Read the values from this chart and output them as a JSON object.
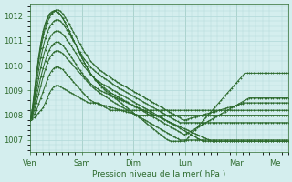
{
  "bg_color": "#d4eeee",
  "grid_color": "#b0d8d8",
  "line_color": "#2d6a2d",
  "marker_color": "#2d6a2d",
  "xlabel": "Pression niveau de la mer( hPa )",
  "xlabel_color": "#2d6a2d",
  "tick_color": "#2d6a2d",
  "ylim": [
    1006.5,
    1012.5
  ],
  "yticks": [
    1007,
    1008,
    1009,
    1010,
    1011,
    1012
  ],
  "days": [
    "Ven",
    "Sam",
    "Dim",
    "Lun",
    "Mar",
    "Me"
  ],
  "day_positions_hours": [
    0,
    24,
    48,
    72,
    96,
    114
  ],
  "total_hours": 120,
  "series": [
    [
      1007.8,
      1007.85,
      1007.9,
      1008.0,
      1008.1,
      1008.2,
      1008.3,
      1008.5,
      1008.7,
      1008.9,
      1009.05,
      1009.15,
      1009.2,
      1009.2,
      1009.15,
      1009.1,
      1009.05,
      1009.0,
      1008.95,
      1008.9,
      1008.85,
      1008.8,
      1008.75,
      1008.7,
      1008.65,
      1008.6,
      1008.55,
      1008.5,
      1008.5,
      1008.5,
      1008.5,
      1008.5,
      1008.45,
      1008.4,
      1008.35,
      1008.3,
      1008.25,
      1008.2,
      1008.2,
      1008.2,
      1008.2,
      1008.2,
      1008.2,
      1008.2,
      1008.2,
      1008.2,
      1008.2,
      1008.2,
      1008.2,
      1008.2,
      1008.2,
      1008.2,
      1008.2,
      1008.2,
      1008.2,
      1008.2,
      1008.2,
      1008.2,
      1008.2,
      1008.2,
      1008.2,
      1008.2,
      1008.2,
      1008.2,
      1008.2,
      1008.2,
      1008.2,
      1008.2,
      1008.2,
      1008.2,
      1008.2,
      1008.2,
      1008.2,
      1008.2,
      1008.2,
      1008.2,
      1008.2,
      1008.2,
      1008.2,
      1008.2,
      1008.2,
      1008.2,
      1008.2,
      1008.2,
      1008.2,
      1008.2,
      1008.2,
      1008.2,
      1008.2,
      1008.2,
      1008.2,
      1008.2,
      1008.2,
      1008.2,
      1008.2,
      1008.2,
      1008.2,
      1008.2,
      1008.2,
      1008.2,
      1008.2,
      1008.2,
      1008.2,
      1008.2,
      1008.2,
      1008.2,
      1008.2,
      1008.2,
      1008.2,
      1008.2,
      1008.2,
      1008.2,
      1008.2,
      1008.2,
      1008.2,
      1008.2,
      1008.2,
      1008.2,
      1008.2,
      1008.2
    ],
    [
      1007.8,
      1007.9,
      1008.05,
      1008.2,
      1008.45,
      1008.7,
      1008.95,
      1009.2,
      1009.45,
      1009.65,
      1009.8,
      1009.9,
      1009.95,
      1009.95,
      1009.9,
      1009.85,
      1009.75,
      1009.65,
      1009.55,
      1009.45,
      1009.35,
      1009.25,
      1009.15,
      1009.05,
      1008.95,
      1008.85,
      1008.75,
      1008.65,
      1008.6,
      1008.55,
      1008.5,
      1008.48,
      1008.45,
      1008.42,
      1008.4,
      1008.38,
      1008.35,
      1008.33,
      1008.3,
      1008.28,
      1008.25,
      1008.23,
      1008.2,
      1008.18,
      1008.15,
      1008.13,
      1008.1,
      1008.08,
      1008.05,
      1008.03,
      1008.0,
      1008.0,
      1008.0,
      1008.0,
      1008.0,
      1008.0,
      1008.0,
      1008.0,
      1008.0,
      1008.0,
      1008.0,
      1008.0,
      1008.0,
      1008.0,
      1008.0,
      1008.0,
      1008.0,
      1008.0,
      1008.0,
      1008.0,
      1008.0,
      1008.0,
      1008.0,
      1008.0,
      1008.0,
      1008.0,
      1008.0,
      1008.0,
      1008.0,
      1008.0,
      1008.0,
      1008.0,
      1008.0,
      1008.0,
      1008.0,
      1008.0,
      1008.0,
      1008.0,
      1008.0,
      1008.0,
      1008.0,
      1008.0,
      1008.0,
      1008.0,
      1008.0,
      1008.0,
      1008.0,
      1008.0,
      1008.0,
      1008.0,
      1008.0,
      1008.0,
      1008.0,
      1008.0,
      1008.0,
      1008.0,
      1008.0,
      1008.0,
      1008.0,
      1008.0,
      1008.0,
      1008.0,
      1008.0,
      1008.0,
      1008.0,
      1008.0,
      1008.0,
      1008.0,
      1008.0,
      1008.0
    ],
    [
      1007.8,
      1007.95,
      1008.2,
      1008.5,
      1008.85,
      1009.2,
      1009.55,
      1009.85,
      1010.1,
      1010.3,
      1010.45,
      1010.55,
      1010.6,
      1010.6,
      1010.55,
      1010.5,
      1010.4,
      1010.3,
      1010.2,
      1010.1,
      1010.0,
      1009.9,
      1009.8,
      1009.7,
      1009.6,
      1009.5,
      1009.4,
      1009.3,
      1009.2,
      1009.12,
      1009.05,
      1008.98,
      1008.92,
      1008.86,
      1008.8,
      1008.74,
      1008.68,
      1008.62,
      1008.56,
      1008.5,
      1008.45,
      1008.4,
      1008.35,
      1008.3,
      1008.25,
      1008.2,
      1008.15,
      1008.1,
      1008.05,
      1008.0,
      1007.95,
      1007.9,
      1007.85,
      1007.8,
      1007.75,
      1007.7,
      1007.65,
      1007.6,
      1007.55,
      1007.5,
      1007.45,
      1007.4,
      1007.35,
      1007.3,
      1007.25,
      1007.2,
      1007.15,
      1007.1,
      1007.05,
      1007.0,
      1007.0,
      1007.0,
      1007.0,
      1007.0,
      1007.0,
      1007.0,
      1007.0,
      1007.0,
      1007.0,
      1007.0,
      1007.0,
      1007.0,
      1007.0,
      1007.0,
      1007.0,
      1007.0,
      1007.0,
      1007.0,
      1007.0,
      1007.0,
      1007.0,
      1007.0,
      1007.0,
      1007.0,
      1007.0,
      1007.0,
      1007.0,
      1007.0,
      1007.0,
      1007.0,
      1007.0,
      1007.0,
      1007.0,
      1007.0,
      1007.0,
      1007.0,
      1007.0,
      1007.0,
      1007.0,
      1007.0,
      1007.0,
      1007.0,
      1007.0,
      1007.0,
      1007.0,
      1007.0,
      1007.0,
      1007.0,
      1007.0,
      1007.0
    ],
    [
      1007.8,
      1008.0,
      1008.35,
      1008.75,
      1009.15,
      1009.55,
      1009.9,
      1010.2,
      1010.45,
      1010.65,
      1010.8,
      1010.9,
      1010.95,
      1010.95,
      1010.9,
      1010.82,
      1010.72,
      1010.6,
      1010.48,
      1010.35,
      1010.22,
      1010.08,
      1009.95,
      1009.82,
      1009.7,
      1009.58,
      1009.47,
      1009.37,
      1009.28,
      1009.2,
      1009.13,
      1009.07,
      1009.02,
      1008.97,
      1008.93,
      1008.89,
      1008.85,
      1008.81,
      1008.77,
      1008.73,
      1008.7,
      1008.66,
      1008.62,
      1008.58,
      1008.54,
      1008.5,
      1008.46,
      1008.42,
      1008.38,
      1008.34,
      1008.3,
      1008.26,
      1008.22,
      1008.18,
      1008.14,
      1008.1,
      1008.06,
      1008.02,
      1007.98,
      1007.94,
      1007.9,
      1007.86,
      1007.82,
      1007.78,
      1007.74,
      1007.7,
      1007.66,
      1007.62,
      1007.58,
      1007.54,
      1007.5,
      1007.46,
      1007.42,
      1007.38,
      1007.34,
      1007.3,
      1007.26,
      1007.22,
      1007.18,
      1007.14,
      1007.1,
      1007.06,
      1007.02,
      1006.98,
      1006.95,
      1006.95,
      1006.95,
      1006.95,
      1006.95,
      1006.95,
      1006.95,
      1006.95,
      1006.95,
      1006.95,
      1006.95,
      1006.95,
      1006.95,
      1006.95,
      1006.95,
      1006.95,
      1006.95,
      1006.95,
      1006.95,
      1006.95,
      1006.95,
      1006.95,
      1006.95,
      1006.95,
      1006.95,
      1006.95,
      1006.95,
      1006.95,
      1006.95,
      1006.95,
      1006.95,
      1006.95,
      1006.95,
      1006.95,
      1006.95,
      1006.95
    ],
    [
      1007.8,
      1008.05,
      1008.5,
      1009.0,
      1009.5,
      1009.95,
      1010.35,
      1010.65,
      1010.9,
      1011.1,
      1011.25,
      1011.35,
      1011.4,
      1011.4,
      1011.35,
      1011.27,
      1011.17,
      1011.05,
      1010.93,
      1010.8,
      1010.66,
      1010.52,
      1010.38,
      1010.24,
      1010.1,
      1009.97,
      1009.85,
      1009.74,
      1009.64,
      1009.55,
      1009.47,
      1009.4,
      1009.34,
      1009.28,
      1009.23,
      1009.18,
      1009.13,
      1009.08,
      1009.03,
      1008.98,
      1008.93,
      1008.88,
      1008.83,
      1008.78,
      1008.73,
      1008.68,
      1008.63,
      1008.58,
      1008.53,
      1008.48,
      1008.43,
      1008.38,
      1008.33,
      1008.28,
      1008.23,
      1008.18,
      1008.13,
      1008.08,
      1008.03,
      1007.98,
      1007.93,
      1007.88,
      1007.83,
      1007.78,
      1007.73,
      1007.68,
      1007.63,
      1007.58,
      1007.53,
      1007.48,
      1007.43,
      1007.38,
      1007.33,
      1007.28,
      1007.23,
      1007.18,
      1007.13,
      1007.08,
      1007.03,
      1006.98,
      1006.95,
      1006.95,
      1006.95,
      1006.95,
      1006.95,
      1006.95,
      1006.95,
      1006.95,
      1006.95,
      1006.95,
      1006.95,
      1006.95,
      1006.95,
      1006.95,
      1006.95,
      1006.95,
      1006.95,
      1006.95,
      1006.95,
      1006.95,
      1006.95,
      1006.95,
      1006.95,
      1006.95,
      1006.95,
      1006.95,
      1006.95,
      1006.95,
      1006.95,
      1006.95,
      1006.95,
      1006.95,
      1006.95,
      1006.95,
      1006.95,
      1006.95,
      1006.95,
      1006.95,
      1006.95,
      1006.95
    ],
    [
      1007.8,
      1008.1,
      1008.65,
      1009.25,
      1009.85,
      1010.35,
      1010.75,
      1011.1,
      1011.35,
      1011.55,
      1011.7,
      1011.8,
      1011.85,
      1011.85,
      1011.8,
      1011.7,
      1011.58,
      1011.45,
      1011.3,
      1011.15,
      1011.0,
      1010.85,
      1010.7,
      1010.55,
      1010.4,
      1010.27,
      1010.15,
      1010.04,
      1009.94,
      1009.85,
      1009.77,
      1009.7,
      1009.63,
      1009.57,
      1009.51,
      1009.45,
      1009.39,
      1009.33,
      1009.27,
      1009.21,
      1009.15,
      1009.1,
      1009.05,
      1009.0,
      1008.95,
      1008.9,
      1008.85,
      1008.8,
      1008.75,
      1008.7,
      1008.65,
      1008.6,
      1008.55,
      1008.5,
      1008.45,
      1008.4,
      1008.35,
      1008.3,
      1008.25,
      1008.2,
      1008.15,
      1008.1,
      1008.05,
      1008.0,
      1007.95,
      1007.9,
      1007.85,
      1007.8,
      1007.75,
      1007.7,
      1007.7,
      1007.7,
      1007.7,
      1007.7,
      1007.7,
      1007.7,
      1007.7,
      1007.7,
      1007.7,
      1007.7,
      1007.7,
      1007.7,
      1007.7,
      1007.7,
      1007.7,
      1007.7,
      1007.7,
      1007.7,
      1007.7,
      1007.7,
      1007.7,
      1007.7,
      1007.7,
      1007.7,
      1007.7,
      1007.7,
      1007.7,
      1007.7,
      1007.7,
      1007.7,
      1007.7,
      1007.7,
      1007.7,
      1007.7,
      1007.7,
      1007.7,
      1007.7,
      1007.7,
      1007.7,
      1007.7,
      1007.7,
      1007.7,
      1007.7,
      1007.7,
      1007.7,
      1007.7,
      1007.7,
      1007.7,
      1007.7,
      1007.7
    ],
    [
      1007.8,
      1008.15,
      1008.8,
      1009.5,
      1010.15,
      1010.7,
      1011.15,
      1011.5,
      1011.75,
      1011.95,
      1012.1,
      1012.2,
      1012.25,
      1012.25,
      1012.2,
      1012.1,
      1011.97,
      1011.83,
      1011.68,
      1011.52,
      1011.36,
      1011.2,
      1011.04,
      1010.88,
      1010.72,
      1010.57,
      1010.43,
      1010.3,
      1010.18,
      1010.08,
      1009.99,
      1009.91,
      1009.84,
      1009.77,
      1009.71,
      1009.65,
      1009.59,
      1009.53,
      1009.47,
      1009.41,
      1009.35,
      1009.3,
      1009.25,
      1009.2,
      1009.15,
      1009.1,
      1009.05,
      1009.0,
      1008.95,
      1008.9,
      1008.85,
      1008.8,
      1008.75,
      1008.7,
      1008.65,
      1008.6,
      1008.55,
      1008.5,
      1008.45,
      1008.4,
      1008.35,
      1008.3,
      1008.25,
      1008.2,
      1008.15,
      1008.1,
      1008.05,
      1008.0,
      1007.95,
      1007.9,
      1007.85,
      1007.8,
      1007.82,
      1007.85,
      1007.88,
      1007.9,
      1007.92,
      1007.95,
      1007.97,
      1008.0,
      1008.02,
      1008.05,
      1008.07,
      1008.1,
      1008.12,
      1008.15,
      1008.17,
      1008.2,
      1008.22,
      1008.25,
      1008.27,
      1008.3,
      1008.32,
      1008.35,
      1008.37,
      1008.4,
      1008.42,
      1008.45,
      1008.47,
      1008.5,
      1008.5,
      1008.5,
      1008.5,
      1008.5,
      1008.5,
      1008.5,
      1008.5,
      1008.5,
      1008.5,
      1008.5,
      1008.5,
      1008.5,
      1008.5,
      1008.5,
      1008.5,
      1008.5,
      1008.5,
      1008.5,
      1008.5,
      1008.5
    ],
    [
      1007.8,
      1008.2,
      1008.9,
      1009.65,
      1010.3,
      1010.85,
      1011.3,
      1011.65,
      1011.9,
      1012.05,
      1012.15,
      1012.2,
      1012.2,
      1012.15,
      1012.05,
      1011.92,
      1011.77,
      1011.6,
      1011.42,
      1011.23,
      1011.04,
      1010.85,
      1010.66,
      1010.48,
      1010.3,
      1010.13,
      1009.97,
      1009.82,
      1009.68,
      1009.56,
      1009.45,
      1009.35,
      1009.26,
      1009.18,
      1009.11,
      1009.04,
      1008.98,
      1008.92,
      1008.87,
      1008.82,
      1008.77,
      1008.72,
      1008.67,
      1008.62,
      1008.57,
      1008.52,
      1008.47,
      1008.42,
      1008.37,
      1008.32,
      1008.27,
      1008.22,
      1008.17,
      1008.12,
      1008.07,
      1008.02,
      1007.97,
      1007.92,
      1007.87,
      1007.82,
      1007.77,
      1007.72,
      1007.67,
      1007.62,
      1007.57,
      1007.52,
      1007.47,
      1007.42,
      1007.37,
      1007.32,
      1007.27,
      1007.22,
      1007.25,
      1007.3,
      1007.35,
      1007.4,
      1007.45,
      1007.5,
      1007.55,
      1007.6,
      1007.65,
      1007.7,
      1007.75,
      1007.8,
      1007.85,
      1007.9,
      1007.95,
      1008.0,
      1008.05,
      1008.1,
      1008.15,
      1008.2,
      1008.25,
      1008.3,
      1008.35,
      1008.4,
      1008.45,
      1008.5,
      1008.55,
      1008.6,
      1008.65,
      1008.7,
      1008.7,
      1008.7,
      1008.7,
      1008.7,
      1008.7,
      1008.7,
      1008.7,
      1008.7,
      1008.7,
      1008.7,
      1008.7,
      1008.7,
      1008.7,
      1008.7,
      1008.7,
      1008.7,
      1008.7,
      1008.7
    ],
    [
      1007.8,
      1008.25,
      1009.0,
      1009.75,
      1010.4,
      1010.95,
      1011.4,
      1011.72,
      1011.95,
      1012.1,
      1012.18,
      1012.22,
      1012.2,
      1012.15,
      1012.05,
      1011.92,
      1011.77,
      1011.6,
      1011.42,
      1011.23,
      1011.04,
      1010.85,
      1010.66,
      1010.48,
      1010.3,
      1010.13,
      1009.97,
      1009.82,
      1009.68,
      1009.55,
      1009.43,
      1009.33,
      1009.23,
      1009.14,
      1009.06,
      1008.98,
      1008.91,
      1008.84,
      1008.77,
      1008.7,
      1008.63,
      1008.56,
      1008.49,
      1008.42,
      1008.35,
      1008.28,
      1008.21,
      1008.14,
      1008.07,
      1008.0,
      1007.93,
      1007.86,
      1007.79,
      1007.72,
      1007.65,
      1007.58,
      1007.51,
      1007.44,
      1007.37,
      1007.3,
      1007.23,
      1007.16,
      1007.09,
      1007.02,
      1006.98,
      1006.95,
      1006.95,
      1006.95,
      1006.95,
      1006.95,
      1006.95,
      1006.95,
      1007.0,
      1007.1,
      1007.2,
      1007.3,
      1007.4,
      1007.5,
      1007.6,
      1007.7,
      1007.8,
      1007.9,
      1008.0,
      1008.1,
      1008.2,
      1008.3,
      1008.4,
      1008.5,
      1008.6,
      1008.7,
      1008.8,
      1008.9,
      1009.0,
      1009.1,
      1009.2,
      1009.3,
      1009.4,
      1009.5,
      1009.6,
      1009.7,
      1009.7,
      1009.7,
      1009.7,
      1009.7,
      1009.7,
      1009.7,
      1009.7,
      1009.7,
      1009.7,
      1009.7,
      1009.7,
      1009.7,
      1009.7,
      1009.7,
      1009.7,
      1009.7,
      1009.7,
      1009.7,
      1009.7,
      1009.7
    ]
  ]
}
